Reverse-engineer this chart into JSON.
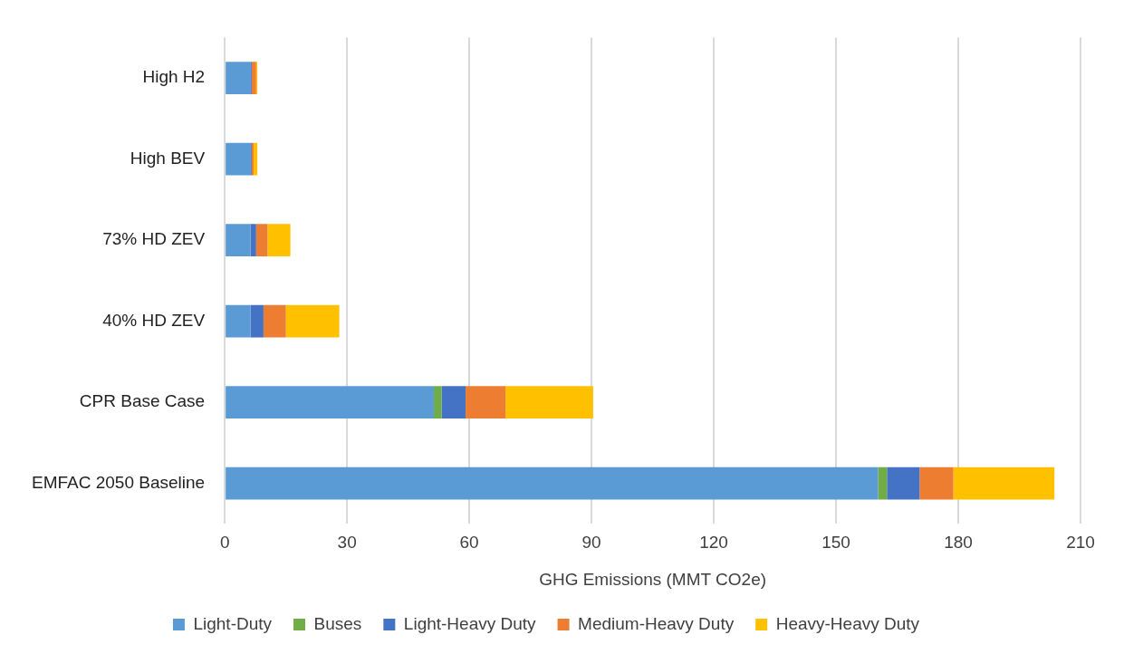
{
  "chart_data": {
    "type": "bar",
    "orientation": "horizontal",
    "stacked": true,
    "xlabel": "GHG Emissions (MMT CO2e)",
    "categories": [
      "High H2",
      "High BEV",
      "73% HD ZEV",
      "40% HD ZEV",
      "CPR Base Case",
      "EMFAC 2050 Baseline"
    ],
    "series": [
      {
        "name": "Light-Duty",
        "color": "#5b9bd5",
        "values": [
          6.4,
          6.4,
          6.3,
          6.3,
          51.3,
          160.3
        ]
      },
      {
        "name": "Buses",
        "color": "#70ad47",
        "values": [
          0,
          0,
          0,
          0,
          1.9,
          2.2
        ]
      },
      {
        "name": "Light-Heavy Duty",
        "color": "#4472c4",
        "values": [
          0.2,
          0.2,
          1.4,
          3.2,
          5.9,
          8.0
        ]
      },
      {
        "name": "Medium-Heavy Duty",
        "color": "#ed7d31",
        "values": [
          1.1,
          0.5,
          2.8,
          5.5,
          9.8,
          8.3
        ]
      },
      {
        "name": "Heavy-Heavy Duty",
        "color": "#ffc000",
        "values": [
          0.3,
          0.9,
          5.6,
          13.1,
          21.5,
          24.8
        ]
      }
    ],
    "xlim": [
      0,
      210
    ],
    "xticks": [
      0,
      30,
      60,
      90,
      120,
      150,
      180,
      210
    ],
    "grid": "x",
    "legend": "bottom"
  }
}
